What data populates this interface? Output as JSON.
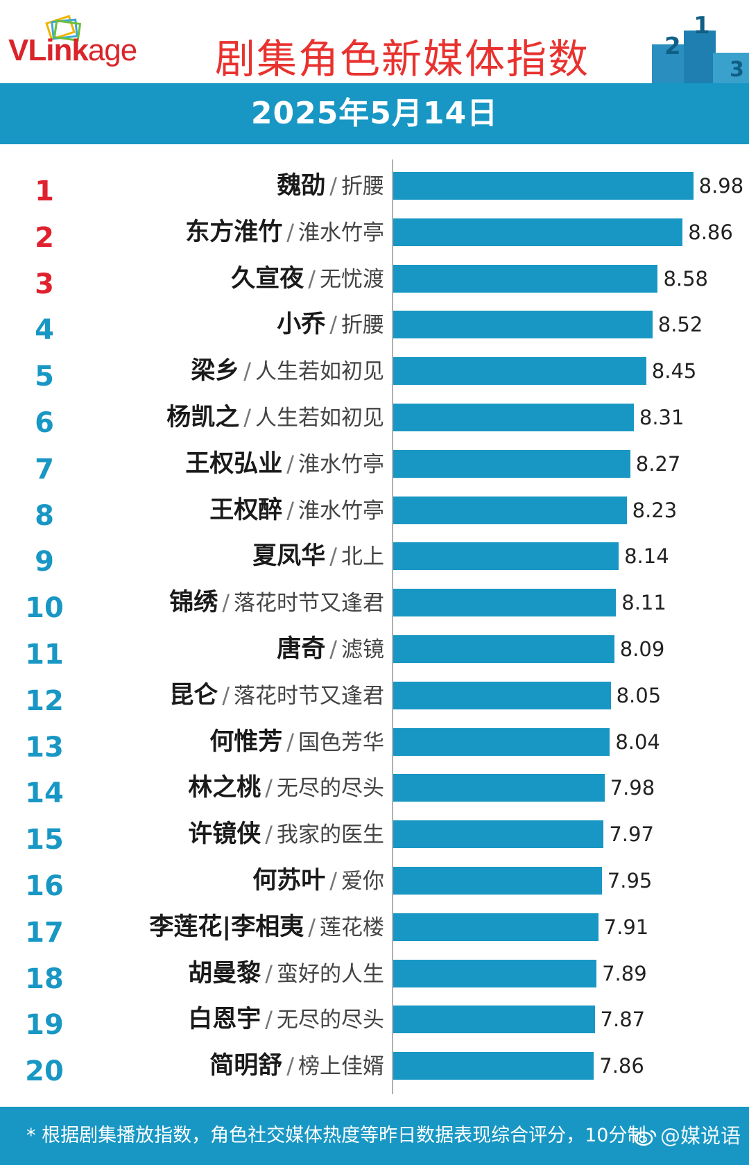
{
  "header": {
    "logo": {
      "prefix": "VLink",
      "suffix": "age"
    },
    "title": "剧集角色新媒体指数",
    "date": "2025年5月14日",
    "podium_digits": [
      "2",
      "1",
      "3"
    ]
  },
  "footer": {
    "note": "* 根据剧集播放指数，角色社交媒体热度等昨日数据表现综合评分，10分制",
    "watermark": "@媒说语"
  },
  "colors": {
    "bar": "#1897c4",
    "top_rank": "#e0212e",
    "rank": "#1897c4",
    "title": "#e8322f"
  },
  "icons": {
    "logo_mark": "stacked-cards-icon",
    "podium": "podium-icon",
    "watermark": "weibo-icon"
  },
  "chart_data": {
    "type": "bar",
    "orientation": "horizontal",
    "title": "剧集角色新媒体指数",
    "subtitle": "2025年5月14日",
    "xlim": [
      5.6,
      9.3
    ],
    "grid": false,
    "legend": "none",
    "categories": [
      "魏劭 / 折腰",
      "东方淮竹 / 淮水竹亭",
      "久宣夜 / 无忧渡",
      "小乔 / 折腰",
      "梁乡 / 人生若如初见",
      "杨凯之 / 人生若如初见",
      "王权弘业 / 淮水竹亭",
      "王权醉 / 淮水竹亭",
      "夏凤华 / 北上",
      "锦绣 / 落花时节又逢君",
      "唐奇 / 滤镜",
      "昆仑 / 落花时节又逢君",
      "何惟芳 / 国色芳华",
      "林之桃 / 无尽的尽头",
      "许镜侠 / 我家的医生",
      "何苏叶 / 爱你",
      "李莲花|李相夷 / 莲花楼",
      "胡曼黎 / 蛮好的人生",
      "白恩宇 / 无尽的尽头",
      "简明舒 / 榜上佳婿"
    ],
    "rows": [
      {
        "rank": "1",
        "character": "魏劭",
        "drama": "折腰",
        "value": 8.98,
        "label": "8.98"
      },
      {
        "rank": "2",
        "character": "东方淮竹",
        "drama": "淮水竹亭",
        "value": 8.86,
        "label": "8.86"
      },
      {
        "rank": "3",
        "character": "久宣夜",
        "drama": "无忧渡",
        "value": 8.58,
        "label": "8.58"
      },
      {
        "rank": "4",
        "character": "小乔",
        "drama": "折腰",
        "value": 8.52,
        "label": "8.52"
      },
      {
        "rank": "5",
        "character": "梁乡",
        "drama": "人生若如初见",
        "value": 8.45,
        "label": "8.45"
      },
      {
        "rank": "6",
        "character": "杨凯之",
        "drama": "人生若如初见",
        "value": 8.31,
        "label": "8.31"
      },
      {
        "rank": "7",
        "character": "王权弘业",
        "drama": "淮水竹亭",
        "value": 8.27,
        "label": "8.27"
      },
      {
        "rank": "8",
        "character": "王权醉",
        "drama": "淮水竹亭",
        "value": 8.23,
        "label": "8.23"
      },
      {
        "rank": "9",
        "character": "夏凤华",
        "drama": "北上",
        "value": 8.14,
        "label": "8.14"
      },
      {
        "rank": "10",
        "character": "锦绣",
        "drama": "落花时节又逢君",
        "value": 8.11,
        "label": "8.11"
      },
      {
        "rank": "11",
        "character": "唐奇",
        "drama": "滤镜",
        "value": 8.09,
        "label": "8.09"
      },
      {
        "rank": "12",
        "character": "昆仑",
        "drama": "落花时节又逢君",
        "value": 8.05,
        "label": "8.05"
      },
      {
        "rank": "13",
        "character": "何惟芳",
        "drama": "国色芳华",
        "value": 8.04,
        "label": "8.04"
      },
      {
        "rank": "14",
        "character": "林之桃",
        "drama": "无尽的尽头",
        "value": 7.98,
        "label": "7.98"
      },
      {
        "rank": "15",
        "character": "许镜侠",
        "drama": "我家的医生",
        "value": 7.97,
        "label": "7.97"
      },
      {
        "rank": "16",
        "character": "何苏叶",
        "drama": "爱你",
        "value": 7.95,
        "label": "7.95"
      },
      {
        "rank": "17",
        "character": "李莲花|李相夷",
        "drama": "莲花楼",
        "value": 7.91,
        "label": "7.91"
      },
      {
        "rank": "18",
        "character": "胡曼黎",
        "drama": "蛮好的人生",
        "value": 7.89,
        "label": "7.89"
      },
      {
        "rank": "19",
        "character": "白恩宇",
        "drama": "无尽的尽头",
        "value": 7.87,
        "label": "7.87"
      },
      {
        "rank": "20",
        "character": "简明舒",
        "drama": "榜上佳婿",
        "value": 7.86,
        "label": "7.86"
      }
    ]
  }
}
